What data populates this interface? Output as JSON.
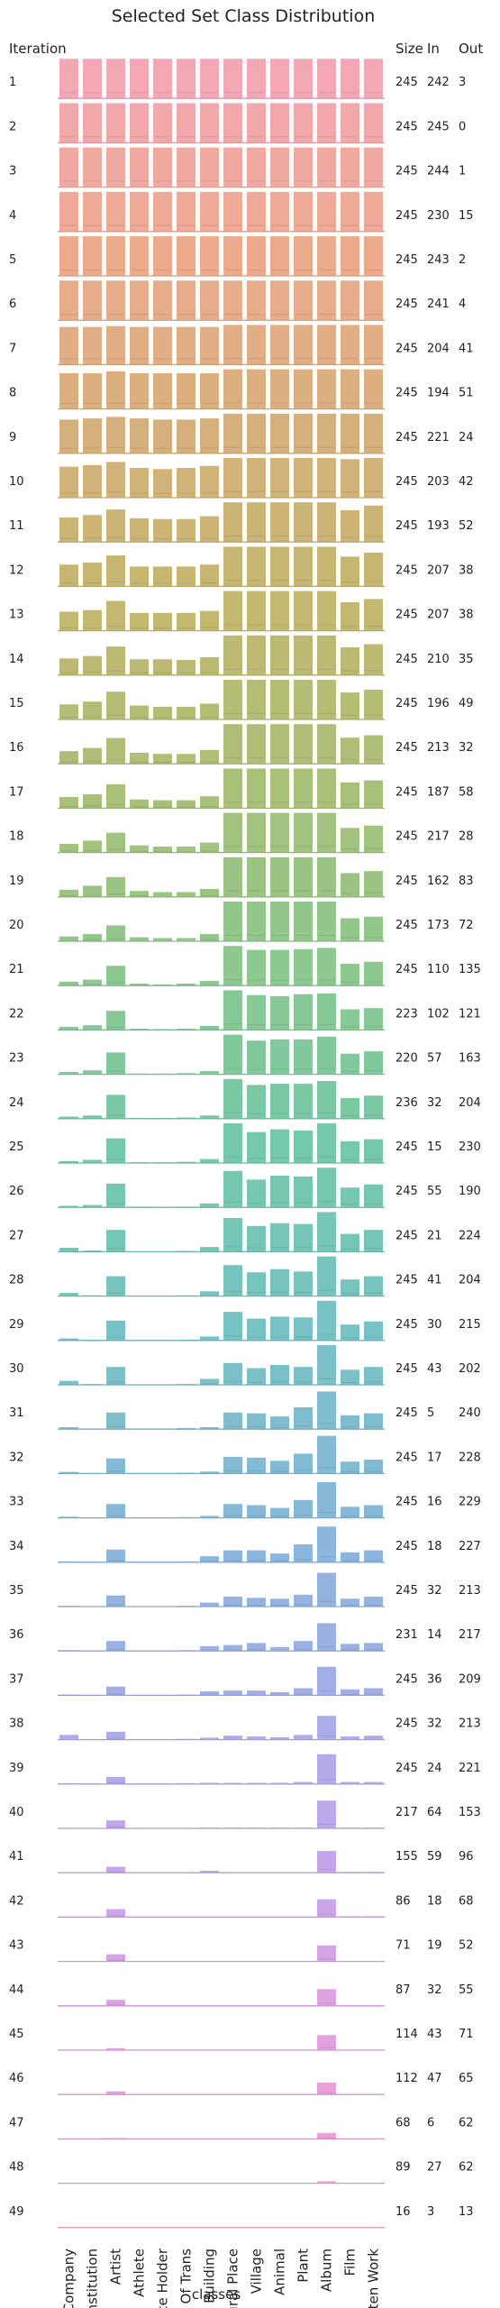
{
  "chart_data": {
    "type": "bar",
    "title": "Selected Set Class Distribution",
    "xlabel": "classes",
    "row_axis_label": "Iteration",
    "table_headers": [
      "Size",
      "In",
      "Out"
    ],
    "categories": [
      "Company",
      "Edu Institution",
      "Artist",
      "Athlete",
      "Office Holder",
      "Mean Of Trans",
      "Building",
      "Natural Place",
      "Village",
      "Animal",
      "Plant",
      "Album",
      "Film",
      "Written Work"
    ],
    "iterations": [
      {
        "iteration": "1",
        "size": 245,
        "in": 242,
        "out": 3,
        "values": [
          1.0,
          1.0,
          1.0,
          1.0,
          1.0,
          1.0,
          1.0,
          1.0,
          1.0,
          1.0,
          1.0,
          1.0,
          1.0,
          1.0
        ]
      },
      {
        "iteration": "2",
        "size": 245,
        "in": 245,
        "out": 0,
        "values": [
          1.0,
          1.0,
          1.0,
          1.0,
          1.0,
          1.0,
          1.0,
          1.0,
          1.0,
          1.0,
          1.0,
          1.0,
          1.0,
          1.0
        ]
      },
      {
        "iteration": "3",
        "size": 245,
        "in": 244,
        "out": 1,
        "values": [
          1.0,
          1.0,
          1.0,
          1.0,
          1.0,
          1.0,
          1.0,
          1.0,
          1.0,
          1.0,
          1.0,
          1.0,
          1.0,
          1.0
        ]
      },
      {
        "iteration": "4",
        "size": 245,
        "in": 230,
        "out": 15,
        "values": [
          1.0,
          1.0,
          1.0,
          1.0,
          1.0,
          1.0,
          1.0,
          1.0,
          1.0,
          1.0,
          1.0,
          1.0,
          1.0,
          1.0
        ]
      },
      {
        "iteration": "5",
        "size": 245,
        "in": 243,
        "out": 2,
        "values": [
          1.0,
          1.0,
          1.0,
          1.0,
          1.0,
          1.0,
          1.0,
          1.0,
          1.0,
          1.0,
          1.0,
          1.0,
          1.0,
          1.0
        ]
      },
      {
        "iteration": "6",
        "size": 245,
        "in": 241,
        "out": 4,
        "values": [
          1.0,
          1.0,
          1.0,
          1.0,
          1.0,
          1.0,
          1.0,
          1.0,
          1.0,
          1.0,
          1.0,
          1.0,
          1.0,
          1.0
        ]
      },
      {
        "iteration": "7",
        "size": 245,
        "in": 204,
        "out": 41,
        "values": [
          0.95,
          0.95,
          0.97,
          0.95,
          0.95,
          0.95,
          0.95,
          1.0,
          1.0,
          1.0,
          1.0,
          1.0,
          1.0,
          1.0
        ]
      },
      {
        "iteration": "8",
        "size": 245,
        "in": 194,
        "out": 51,
        "values": [
          0.9,
          0.9,
          0.95,
          0.9,
          0.9,
          0.9,
          0.9,
          1.0,
          1.0,
          1.0,
          1.0,
          1.0,
          1.0,
          1.0
        ]
      },
      {
        "iteration": "9",
        "size": 245,
        "in": 221,
        "out": 24,
        "values": [
          0.85,
          0.88,
          0.92,
          0.88,
          0.85,
          0.85,
          0.88,
          1.0,
          1.0,
          1.0,
          1.0,
          1.0,
          1.0,
          1.0
        ]
      },
      {
        "iteration": "10",
        "size": 245,
        "in": 203,
        "out": 42,
        "values": [
          0.78,
          0.82,
          0.9,
          0.75,
          0.72,
          0.75,
          0.8,
          1.0,
          1.0,
          1.0,
          1.0,
          1.0,
          0.97,
          1.0
        ]
      },
      {
        "iteration": "11",
        "size": 245,
        "in": 193,
        "out": 52,
        "values": [
          0.62,
          0.68,
          0.82,
          0.6,
          0.58,
          0.58,
          0.65,
          1.0,
          1.0,
          1.0,
          1.0,
          1.0,
          0.8,
          0.92
        ]
      },
      {
        "iteration": "12",
        "size": 245,
        "in": 207,
        "out": 38,
        "values": [
          0.55,
          0.6,
          0.78,
          0.5,
          0.5,
          0.5,
          0.55,
          1.0,
          1.0,
          1.0,
          1.0,
          1.0,
          0.75,
          0.85
        ]
      },
      {
        "iteration": "13",
        "size": 245,
        "in": 207,
        "out": 38,
        "values": [
          0.48,
          0.52,
          0.75,
          0.45,
          0.45,
          0.45,
          0.5,
          1.0,
          1.0,
          1.0,
          1.0,
          1.0,
          0.72,
          0.8
        ]
      },
      {
        "iteration": "14",
        "size": 245,
        "in": 210,
        "out": 35,
        "values": [
          0.42,
          0.48,
          0.72,
          0.4,
          0.4,
          0.38,
          0.45,
          1.0,
          1.0,
          1.0,
          1.0,
          1.0,
          0.7,
          0.78
        ]
      },
      {
        "iteration": "15",
        "size": 245,
        "in": 196,
        "out": 49,
        "values": [
          0.38,
          0.45,
          0.7,
          0.35,
          0.32,
          0.32,
          0.4,
          1.0,
          1.0,
          1.0,
          1.0,
          1.0,
          0.68,
          0.75
        ]
      },
      {
        "iteration": "16",
        "size": 245,
        "in": 213,
        "out": 32,
        "values": [
          0.32,
          0.4,
          0.65,
          0.28,
          0.25,
          0.25,
          0.35,
          1.0,
          1.0,
          1.0,
          1.0,
          1.0,
          0.66,
          0.72
        ]
      },
      {
        "iteration": "17",
        "size": 245,
        "in": 187,
        "out": 58,
        "values": [
          0.28,
          0.35,
          0.6,
          0.22,
          0.2,
          0.2,
          0.3,
          1.0,
          1.0,
          1.0,
          1.0,
          1.0,
          0.65,
          0.7
        ]
      },
      {
        "iteration": "18",
        "size": 245,
        "in": 217,
        "out": 28,
        "values": [
          0.22,
          0.3,
          0.5,
          0.18,
          0.15,
          0.15,
          0.25,
          1.0,
          1.0,
          1.0,
          1.0,
          1.0,
          0.62,
          0.68
        ]
      },
      {
        "iteration": "19",
        "size": 245,
        "in": 162,
        "out": 83,
        "values": [
          0.18,
          0.28,
          0.5,
          0.15,
          0.12,
          0.12,
          0.2,
          1.0,
          1.0,
          1.0,
          1.0,
          1.0,
          0.6,
          0.65
        ]
      },
      {
        "iteration": "20",
        "size": 245,
        "in": 173,
        "out": 72,
        "values": [
          0.12,
          0.18,
          0.4,
          0.1,
          0.08,
          0.08,
          0.18,
          1.0,
          1.0,
          1.0,
          1.0,
          1.0,
          0.58,
          0.62
        ]
      },
      {
        "iteration": "21",
        "size": 245,
        "in": 110,
        "out": 135,
        "values": [
          0.1,
          0.15,
          0.5,
          0.05,
          0.03,
          0.05,
          0.12,
          1.0,
          0.9,
          0.9,
          0.92,
          0.95,
          0.55,
          0.6
        ]
      },
      {
        "iteration": "22",
        "size": 223,
        "in": 102,
        "out": 121,
        "values": [
          0.08,
          0.12,
          0.48,
          0.03,
          0.02,
          0.03,
          0.1,
          1.0,
          0.88,
          0.85,
          0.9,
          0.92,
          0.52,
          0.55
        ]
      },
      {
        "iteration": "23",
        "size": 220,
        "in": 57,
        "out": 163,
        "values": [
          0.06,
          0.1,
          0.55,
          0.02,
          0.02,
          0.03,
          0.08,
          1.0,
          0.85,
          0.88,
          0.88,
          0.95,
          0.52,
          0.58
        ]
      },
      {
        "iteration": "24",
        "size": 236,
        "in": 32,
        "out": 204,
        "values": [
          0.05,
          0.08,
          0.6,
          0.02,
          0.02,
          0.03,
          0.08,
          1.0,
          0.85,
          0.88,
          0.88,
          0.95,
          0.52,
          0.58
        ]
      },
      {
        "iteration": "25",
        "size": 245,
        "in": 15,
        "out": 230,
        "values": [
          0.05,
          0.08,
          0.62,
          0.02,
          0.02,
          0.03,
          0.1,
          1.0,
          0.78,
          0.85,
          0.82,
          1.0,
          0.55,
          0.6
        ]
      },
      {
        "iteration": "26",
        "size": 245,
        "in": 55,
        "out": 190,
        "values": [
          0.04,
          0.06,
          0.6,
          0.02,
          0.01,
          0.02,
          0.1,
          0.92,
          0.7,
          0.8,
          0.78,
          1.0,
          0.5,
          0.58
        ]
      },
      {
        "iteration": "27",
        "size": 245,
        "in": 21,
        "out": 224,
        "values": [
          0.1,
          0.03,
          0.55,
          0.01,
          0.01,
          0.02,
          0.12,
          0.85,
          0.65,
          0.72,
          0.7,
          1.0,
          0.45,
          0.55
        ]
      },
      {
        "iteration": "28",
        "size": 245,
        "in": 41,
        "out": 204,
        "values": [
          0.08,
          0.02,
          0.5,
          0.01,
          0.01,
          0.02,
          0.12,
          0.78,
          0.6,
          0.68,
          0.62,
          1.0,
          0.42,
          0.5
        ]
      },
      {
        "iteration": "29",
        "size": 245,
        "in": 30,
        "out": 215,
        "values": [
          0.05,
          0.02,
          0.5,
          0.01,
          0.01,
          0.02,
          0.1,
          0.72,
          0.55,
          0.6,
          0.58,
          1.0,
          0.4,
          0.48
        ]
      },
      {
        "iteration": "30",
        "size": 245,
        "in": 43,
        "out": 202,
        "values": [
          0.1,
          0.02,
          0.45,
          0.01,
          0.01,
          0.02,
          0.15,
          0.55,
          0.42,
          0.5,
          0.45,
          1.0,
          0.38,
          0.45
        ]
      },
      {
        "iteration": "31",
        "size": 245,
        "in": 5,
        "out": 240,
        "values": [
          0.05,
          0.01,
          0.42,
          0.01,
          0.01,
          0.03,
          0.05,
          0.42,
          0.4,
          0.32,
          0.55,
          0.95,
          0.35,
          0.4
        ]
      },
      {
        "iteration": "32",
        "size": 245,
        "in": 17,
        "out": 228,
        "values": [
          0.04,
          0.01,
          0.38,
          0.01,
          0.01,
          0.02,
          0.05,
          0.42,
          0.4,
          0.32,
          0.5,
          0.95,
          0.3,
          0.35
        ]
      },
      {
        "iteration": "33",
        "size": 245,
        "in": 16,
        "out": 229,
        "values": [
          0.03,
          0.01,
          0.35,
          0.01,
          0.01,
          0.02,
          0.05,
          0.35,
          0.32,
          0.25,
          0.45,
          0.9,
          0.28,
          0.32
        ]
      },
      {
        "iteration": "34",
        "size": 245,
        "in": 18,
        "out": 227,
        "values": [
          0.02,
          0.01,
          0.32,
          0.01,
          0.01,
          0.02,
          0.15,
          0.3,
          0.3,
          0.22,
          0.45,
          0.9,
          0.25,
          0.3
        ]
      },
      {
        "iteration": "35",
        "size": 245,
        "in": 32,
        "out": 213,
        "values": [
          0.02,
          0.01,
          0.28,
          0.01,
          0.01,
          0.02,
          0.1,
          0.25,
          0.22,
          0.2,
          0.3,
          0.85,
          0.2,
          0.25
        ]
      },
      {
        "iteration": "36",
        "size": 231,
        "in": 14,
        "out": 217,
        "values": [
          0.02,
          0.01,
          0.25,
          0.01,
          0.01,
          0.02,
          0.12,
          0.15,
          0.2,
          0.1,
          0.25,
          0.7,
          0.18,
          0.2
        ]
      },
      {
        "iteration": "37",
        "size": 245,
        "in": 36,
        "out": 209,
        "values": [
          0.02,
          0.01,
          0.22,
          0.01,
          0.01,
          0.02,
          0.1,
          0.12,
          0.12,
          0.08,
          0.18,
          0.72,
          0.15,
          0.18
        ]
      },
      {
        "iteration": "38",
        "size": 245,
        "in": 32,
        "out": 213,
        "values": [
          0.12,
          0.01,
          0.2,
          0.01,
          0.01,
          0.02,
          0.05,
          0.1,
          0.08,
          0.06,
          0.12,
          0.6,
          0.08,
          0.1
        ]
      },
      {
        "iteration": "39",
        "size": 245,
        "in": 24,
        "out": 221,
        "values": [
          0.02,
          0.01,
          0.18,
          0.01,
          0.01,
          0.02,
          0.03,
          0.03,
          0.03,
          0.03,
          0.05,
          0.75,
          0.05,
          0.05
        ]
      },
      {
        "iteration": "40",
        "size": 217,
        "in": 64,
        "out": 153,
        "values": [
          0.01,
          0.01,
          0.2,
          0.01,
          0.01,
          0.01,
          0.02,
          0.02,
          0.02,
          0.02,
          0.02,
          0.7,
          0.02,
          0.02
        ]
      },
      {
        "iteration": "41",
        "size": 155,
        "in": 59,
        "out": 96,
        "values": [
          0.01,
          0.01,
          0.15,
          0.01,
          0.01,
          0.01,
          0.05,
          0.01,
          0.01,
          0.01,
          0.01,
          0.55,
          0.02,
          0.02
        ]
      },
      {
        "iteration": "42",
        "size": 86,
        "in": 18,
        "out": 68,
        "values": [
          0.01,
          0.01,
          0.2,
          0.01,
          0.01,
          0.01,
          0.01,
          0.01,
          0.01,
          0.01,
          0.01,
          0.45,
          0.02,
          0.02
        ]
      },
      {
        "iteration": "43",
        "size": 71,
        "in": 19,
        "out": 52,
        "values": [
          0.01,
          0.01,
          0.18,
          0.01,
          0.01,
          0.01,
          0.01,
          0.01,
          0.01,
          0.01,
          0.01,
          0.4,
          0.01,
          0.01
        ]
      },
      {
        "iteration": "44",
        "size": 87,
        "in": 32,
        "out": 55,
        "values": [
          0.01,
          0.01,
          0.15,
          0.01,
          0.01,
          0.01,
          0.01,
          0.01,
          0.01,
          0.01,
          0.01,
          0.42,
          0.01,
          0.01
        ]
      },
      {
        "iteration": "45",
        "size": 114,
        "in": 43,
        "out": 71,
        "values": [
          0.01,
          0.01,
          0.05,
          0.01,
          0.01,
          0.01,
          0.01,
          0.01,
          0.01,
          0.01,
          0.01,
          0.38,
          0.01,
          0.01
        ]
      },
      {
        "iteration": "46",
        "size": 112,
        "in": 47,
        "out": 65,
        "values": [
          0.01,
          0.01,
          0.08,
          0.01,
          0.01,
          0.01,
          0.01,
          0.01,
          0.01,
          0.01,
          0.01,
          0.3,
          0.01,
          0.01
        ]
      },
      {
        "iteration": "47",
        "size": 68,
        "in": 6,
        "out": 62,
        "values": [
          0.0,
          0.0,
          0.02,
          0.0,
          0.0,
          0.0,
          0.0,
          0.0,
          0.0,
          0.0,
          0.0,
          0.15,
          0.0,
          0.0
        ]
      },
      {
        "iteration": "48",
        "size": 89,
        "in": 27,
        "out": 62,
        "values": [
          0.0,
          0.0,
          0.01,
          0.0,
          0.0,
          0.0,
          0.0,
          0.0,
          0.0,
          0.0,
          0.0,
          0.05,
          0.0,
          0.0
        ]
      },
      {
        "iteration": "49",
        "size": 16,
        "in": 3,
        "out": 13,
        "values": [
          0.0,
          0.0,
          0.0,
          0.0,
          0.0,
          0.0,
          0.0,
          0.0,
          0.0,
          0.0,
          0.0,
          0.0,
          0.0,
          0.0
        ]
      }
    ],
    "ylim": [
      0,
      1
    ],
    "grid": false,
    "colors": {
      "palette_start": "#f4a7b5",
      "palette_sequence": [
        "#f4a7b5",
        "#ecaa8d",
        "#d6b07c",
        "#c2b86f",
        "#a9c079",
        "#8cc88f",
        "#75c9ab",
        "#77c2c4",
        "#86b8d8",
        "#a2aee8",
        "#c5a6ec",
        "#e4a1e0",
        "#f1a2c6"
      ]
    }
  }
}
